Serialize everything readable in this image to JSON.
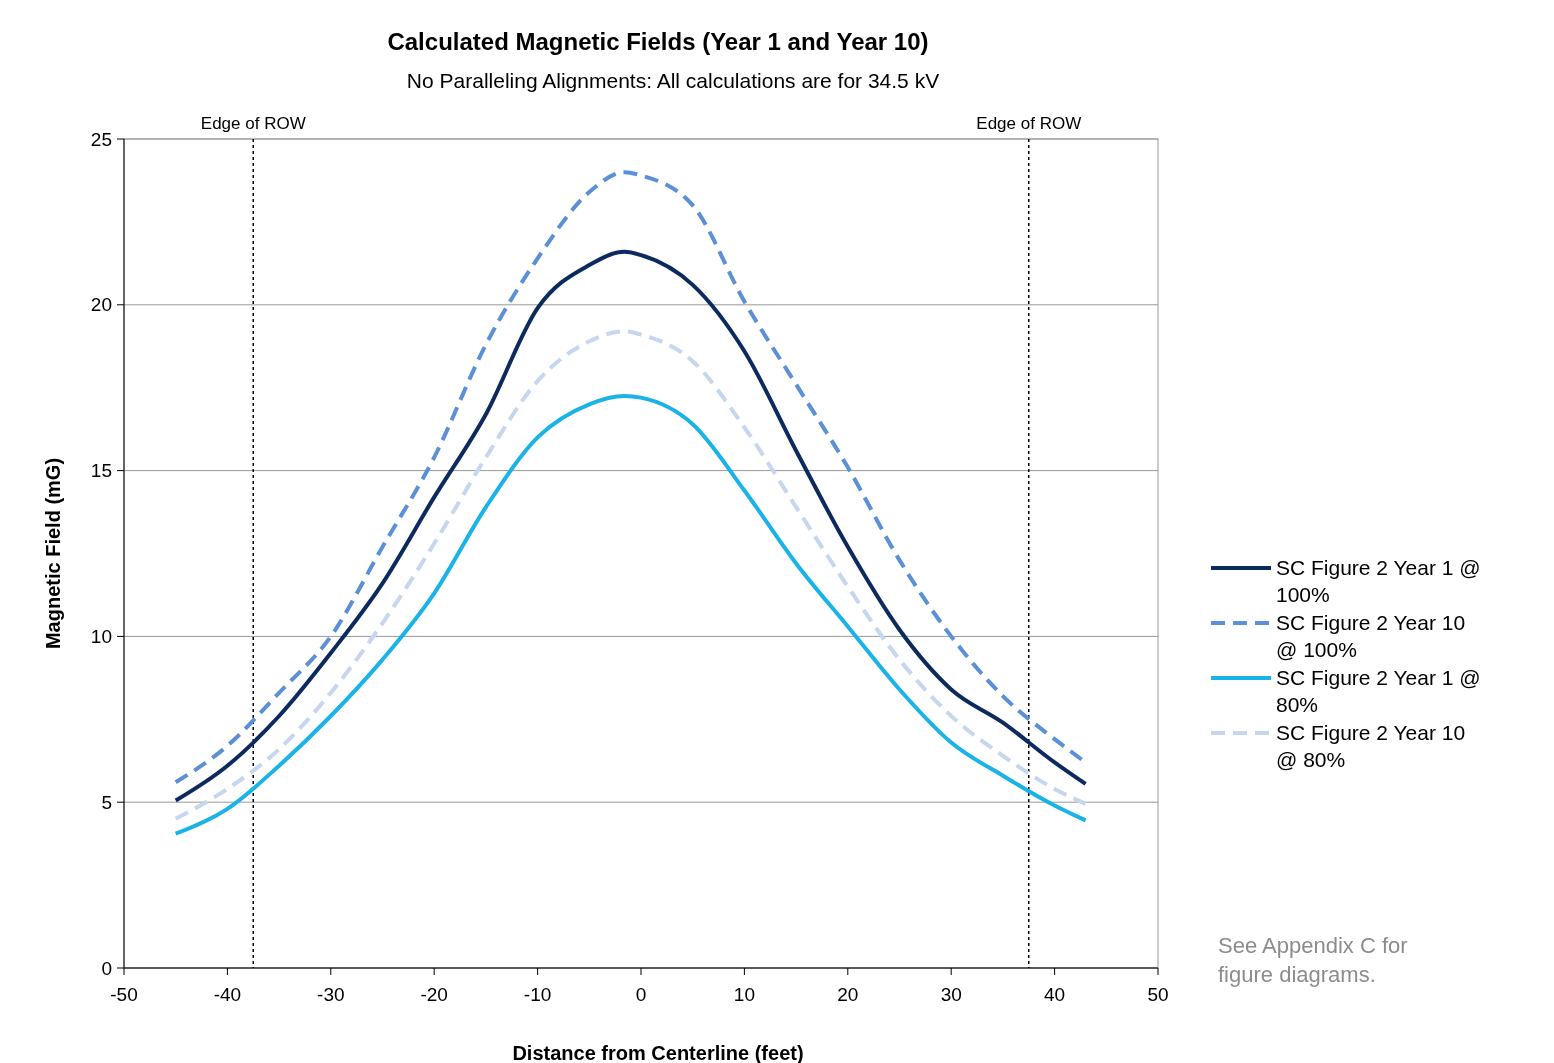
{
  "chart_data": {
    "type": "line",
    "title": "Calculated Magnetic Fields (Year 1 and Year 10)",
    "subtitle": "No Paralleling Alignments: All calculations are for 34.5 kV",
    "xlabel": "Distance from Centerline (feet)",
    "ylabel": "Magnetic Field (mG)",
    "x": [
      -45,
      -40,
      -35,
      -30,
      -25,
      -20,
      -15,
      -10,
      -5,
      -1.6,
      0,
      5,
      10,
      15,
      20,
      25,
      30,
      35,
      40,
      43
    ],
    "series": [
      {
        "name": "SC Figure 2 Year 1 @ 100%",
        "color": "#0d2a5e",
        "line_style": "solid",
        "values": [
          5.05,
          6.1,
          7.6,
          9.5,
          11.6,
          14.2,
          16.7,
          19.9,
          21.2,
          21.6,
          21.5,
          20.6,
          18.6,
          15.6,
          12.7,
          10.2,
          8.4,
          7.4,
          6.2,
          5.55
        ]
      },
      {
        "name": "SC Figure 2 Year 10 @ 100%",
        "color": "#5b8fd6",
        "line_style": "dashed",
        "values": [
          5.6,
          6.7,
          8.3,
          10.0,
          12.7,
          15.4,
          18.8,
          21.4,
          23.4,
          24.0,
          23.9,
          23.0,
          20.1,
          17.6,
          15.1,
          12.3,
          10.0,
          8.2,
          6.9,
          6.2
        ]
      },
      {
        "name": "SC Figure 2 Year 1 @ 80%",
        "color": "#1ab3e8",
        "line_style": "solid",
        "values": [
          4.05,
          4.8,
          6.1,
          7.6,
          9.3,
          11.3,
          13.9,
          16.0,
          17.0,
          17.25,
          17.2,
          16.4,
          14.4,
          12.2,
          10.3,
          8.4,
          6.8,
          5.8,
          4.9,
          4.45
        ]
      },
      {
        "name": "SC Figure 2 Year 10 @ 80%",
        "color": "#c5d6ee",
        "line_style": "dashed",
        "values": [
          4.5,
          5.4,
          6.6,
          8.3,
          10.4,
          12.8,
          15.4,
          17.7,
          18.9,
          19.2,
          19.1,
          18.3,
          16.3,
          13.9,
          11.5,
          9.3,
          7.6,
          6.4,
          5.4,
          4.95
        ]
      }
    ],
    "xlim": [
      -50,
      50
    ],
    "xticks": [
      -50,
      -40,
      -30,
      -20,
      -10,
      0,
      10,
      20,
      30,
      40,
      50
    ],
    "ylim": [
      0,
      25
    ],
    "yticks": [
      0,
      5,
      10,
      15,
      20,
      25
    ],
    "ref_lines": [
      {
        "axis": "x",
        "value": -37.5,
        "label": "Edge of ROW",
        "color": "#000000",
        "line_style": "dotted"
      },
      {
        "axis": "x",
        "value": 37.5,
        "label": "Edge of ROW",
        "color": "#000000",
        "line_style": "dotted"
      }
    ],
    "annotations": [
      "See Appendix C for figure diagrams."
    ],
    "grid": "y",
    "legend": "right"
  }
}
